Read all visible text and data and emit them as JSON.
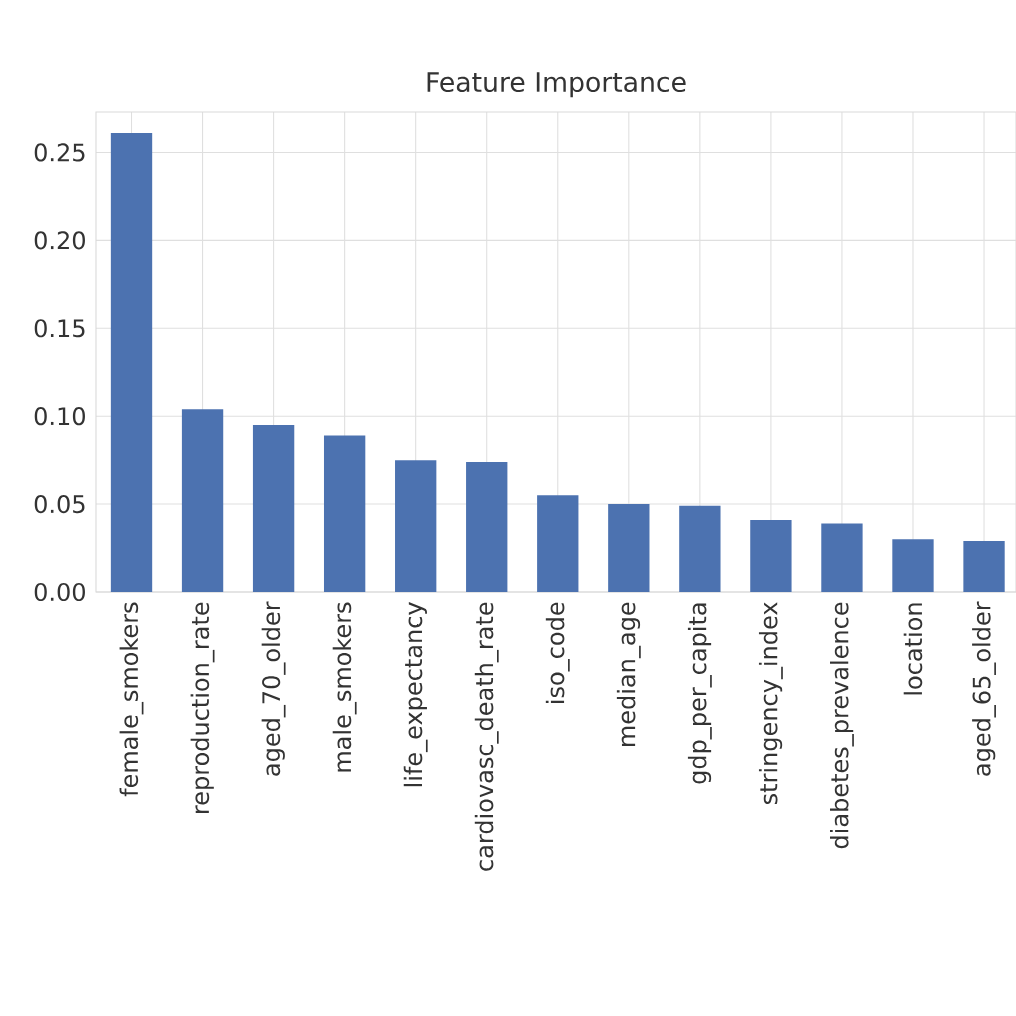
{
  "chart_data": {
    "type": "bar",
    "title": "Feature Importance",
    "categories": [
      "female_smokers",
      "reproduction_rate",
      "aged_70_older",
      "male_smokers",
      "life_expectancy",
      "cardiovasc_death_rate",
      "iso_code",
      "median_age",
      "gdp_per_capita",
      "stringency_index",
      "diabetes_prevalence",
      "location",
      "aged_65_older"
    ],
    "values": [
      0.261,
      0.104,
      0.095,
      0.089,
      0.075,
      0.074,
      0.055,
      0.05,
      0.049,
      0.041,
      0.039,
      0.03,
      0.029
    ],
    "color": "#4c72b0",
    "ylim": [
      0,
      0.273
    ],
    "yticks": [
      {
        "value": 0,
        "label": "0.00"
      },
      {
        "value": 0.05,
        "label": "0.05"
      },
      {
        "value": 0.1,
        "label": "0.10"
      },
      {
        "value": 0.15,
        "label": "0.15"
      },
      {
        "value": 0.2,
        "label": "0.20"
      },
      {
        "value": 0.25,
        "label": "0.25"
      }
    ],
    "grid": true
  }
}
